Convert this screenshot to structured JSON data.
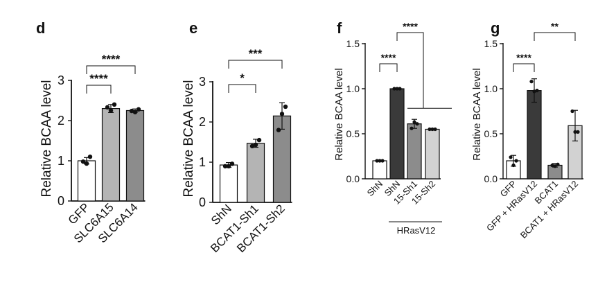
{
  "chart_data": [
    {
      "panel": "d",
      "type": "bar",
      "ylabel": "Relative BCAA level",
      "ylim": [
        0,
        3
      ],
      "yticks": [
        0,
        1,
        2,
        3
      ],
      "categories": [
        "GFP",
        "SLC6A15",
        "SLC6A14"
      ],
      "values": [
        1.0,
        2.3,
        2.25
      ],
      "errors": [
        0.08,
        0.1,
        0.04
      ],
      "points": [
        [
          0.98,
          0.93,
          1.1
        ],
        [
          2.33,
          2.25,
          2.4
        ],
        [
          2.24,
          2.21,
          2.28
        ]
      ],
      "bar_colors": [
        "#ffffff",
        "#b4b4b4",
        "#8c8c8c"
      ],
      "significance": [
        {
          "from": 0,
          "to": 1,
          "label": "****"
        },
        {
          "from": 0,
          "to": 2,
          "label": "****"
        }
      ]
    },
    {
      "panel": "e",
      "type": "bar",
      "ylabel": "Relative BCAA level",
      "ylim": [
        0,
        3
      ],
      "yticks": [
        0,
        1,
        2,
        3
      ],
      "categories": [
        "ShN",
        "BCAT1-Sh1",
        "BCAT1-Sh2"
      ],
      "values": [
        0.93,
        1.47,
        2.15
      ],
      "errors": [
        0.06,
        0.1,
        0.33
      ],
      "points": [
        [
          0.9,
          0.9,
          0.96
        ],
        [
          1.4,
          1.43,
          1.55
        ],
        [
          1.8,
          2.2,
          2.38
        ]
      ],
      "bar_colors": [
        "#ffffff",
        "#b4b4b4",
        "#8c8c8c"
      ],
      "significance": [
        {
          "from": 0,
          "to": 1,
          "label": "*"
        },
        {
          "from": 0,
          "to": 2,
          "label": "***"
        }
      ]
    },
    {
      "panel": "f",
      "type": "bar",
      "ylabel": "Relative BCAA level",
      "ylim": [
        0,
        1.5
      ],
      "yticks": [
        "0.0",
        "0.5",
        "1.0",
        "1.5"
      ],
      "categories": [
        "ShN",
        "ShN",
        "15-Sh1",
        "15-Sh2"
      ],
      "group_label": "HRasV12",
      "values": [
        0.2,
        1.0,
        0.61,
        0.55
      ],
      "errors": [
        0.0,
        0.0,
        0.05,
        0.0
      ],
      "points": [
        [
          0.2,
          0.2,
          0.2
        ],
        [
          1.0,
          1.0,
          1.0
        ],
        [
          0.56,
          0.63,
          0.61
        ],
        [
          0.55,
          0.55,
          0.55
        ]
      ],
      "bar_colors": [
        "#ffffff",
        "#3a3a3a",
        "#8c8c8c",
        "#d2d2d2"
      ],
      "significance": [
        {
          "from": 0,
          "to": 1,
          "label": "****"
        },
        {
          "from": 1,
          "to": "2-3",
          "label": "****"
        }
      ]
    },
    {
      "panel": "g",
      "type": "bar",
      "ylabel": "Relative BCAA level",
      "ylim": [
        0,
        1.5
      ],
      "yticks": [
        "0.0",
        "0.5",
        "1.0",
        "1.5"
      ],
      "categories": [
        "GFP",
        "GFP + HRasV12",
        "BCAT1",
        "BCAT1 + HRasV12"
      ],
      "values": [
        0.2,
        0.98,
        0.15,
        0.59
      ],
      "errors": [
        0.06,
        0.13,
        0.02,
        0.17
      ],
      "points": [
        [
          0.24,
          0.15,
          0.2
        ],
        [
          1.08,
          0.97,
          0.98
        ],
        [
          0.15,
          0.14,
          0.16
        ],
        [
          0.75,
          0.52,
          0.52
        ]
      ],
      "bar_colors": [
        "#ffffff",
        "#3a3a3a",
        "#8c8c8c",
        "#d2d2d2"
      ],
      "significance": [
        {
          "from": 0,
          "to": 1,
          "label": "****"
        },
        {
          "from": 1,
          "to": 3,
          "label": "**"
        }
      ]
    }
  ]
}
